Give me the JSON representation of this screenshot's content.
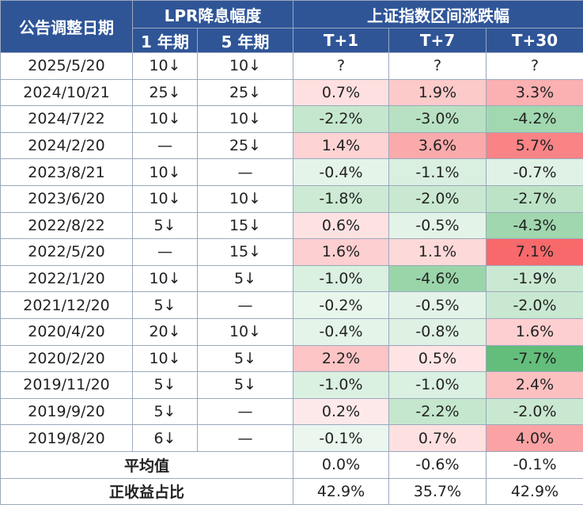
{
  "header": {
    "date_col": "公告调整日期",
    "lpr_group": "LPR降息幅度",
    "index_group": "上证指数区间涨跌幅",
    "lpr_1y": "1 年期",
    "lpr_5y": "5 年期",
    "t1": "T+1",
    "t7": "T+7",
    "t30": "T+30"
  },
  "rows": [
    {
      "date": "2025/5/20",
      "lpr1": "10↓",
      "lpr5": "10↓",
      "t1": "?",
      "t7": "?",
      "t30": "?"
    },
    {
      "date": "2024/10/21",
      "lpr1": "25↓",
      "lpr5": "25↓",
      "t1": "0.7%",
      "t7": "1.9%",
      "t30": "3.3%"
    },
    {
      "date": "2024/7/22",
      "lpr1": "10↓",
      "lpr5": "10↓",
      "t1": "-2.2%",
      "t7": "-3.0%",
      "t30": "-4.2%"
    },
    {
      "date": "2024/2/20",
      "lpr1": "—",
      "lpr5": "25↓",
      "t1": "1.4%",
      "t7": "3.6%",
      "t30": "5.7%"
    },
    {
      "date": "2023/8/21",
      "lpr1": "10↓",
      "lpr5": "—",
      "t1": "-0.4%",
      "t7": "-1.1%",
      "t30": "-0.7%"
    },
    {
      "date": "2023/6/20",
      "lpr1": "10↓",
      "lpr5": "10↓",
      "t1": "-1.8%",
      "t7": "-2.0%",
      "t30": "-2.7%"
    },
    {
      "date": "2022/8/22",
      "lpr1": "5↓",
      "lpr5": "15↓",
      "t1": "0.6%",
      "t7": "-0.5%",
      "t30": "-4.3%"
    },
    {
      "date": "2022/5/20",
      "lpr1": "—",
      "lpr5": "15↓",
      "t1": "1.6%",
      "t7": "1.1%",
      "t30": "7.1%"
    },
    {
      "date": "2022/1/20",
      "lpr1": "10↓",
      "lpr5": "5↓",
      "t1": "-1.0%",
      "t7": "-4.6%",
      "t30": "-1.9%"
    },
    {
      "date": "2021/12/20",
      "lpr1": "5↓",
      "lpr5": "—",
      "t1": "-0.2%",
      "t7": "-0.5%",
      "t30": "-2.0%"
    },
    {
      "date": "2020/4/20",
      "lpr1": "20↓",
      "lpr5": "10↓",
      "t1": "-0.4%",
      "t7": "-0.8%",
      "t30": "1.6%"
    },
    {
      "date": "2020/2/20",
      "lpr1": "10↓",
      "lpr5": "5↓",
      "t1": "2.2%",
      "t7": "0.5%",
      "t30": "-7.7%"
    },
    {
      "date": "2019/11/20",
      "lpr1": "5↓",
      "lpr5": "5↓",
      "t1": "-1.0%",
      "t7": "-1.0%",
      "t30": "2.4%"
    },
    {
      "date": "2019/9/20",
      "lpr1": "5↓",
      "lpr5": "—",
      "t1": "0.2%",
      "t7": "-2.2%",
      "t30": "-2.0%"
    },
    {
      "date": "2019/8/20",
      "lpr1": "6↓",
      "lpr5": "—",
      "t1": "-0.1%",
      "t7": "0.7%",
      "t30": "4.0%"
    }
  ],
  "summary": {
    "avg_label": "平均值",
    "avg": {
      "t1": "0.0%",
      "t7": "-0.6%",
      "t30": "-0.1%"
    },
    "pos_label": "正收益占比",
    "pos": {
      "t1": "42.9%",
      "t7": "35.7%",
      "t30": "42.9%"
    }
  },
  "colors": {
    "header_bg": "#2f5597",
    "positive": "#f8696b",
    "negative": "#63be7b",
    "neutral": "#ffffff"
  }
}
